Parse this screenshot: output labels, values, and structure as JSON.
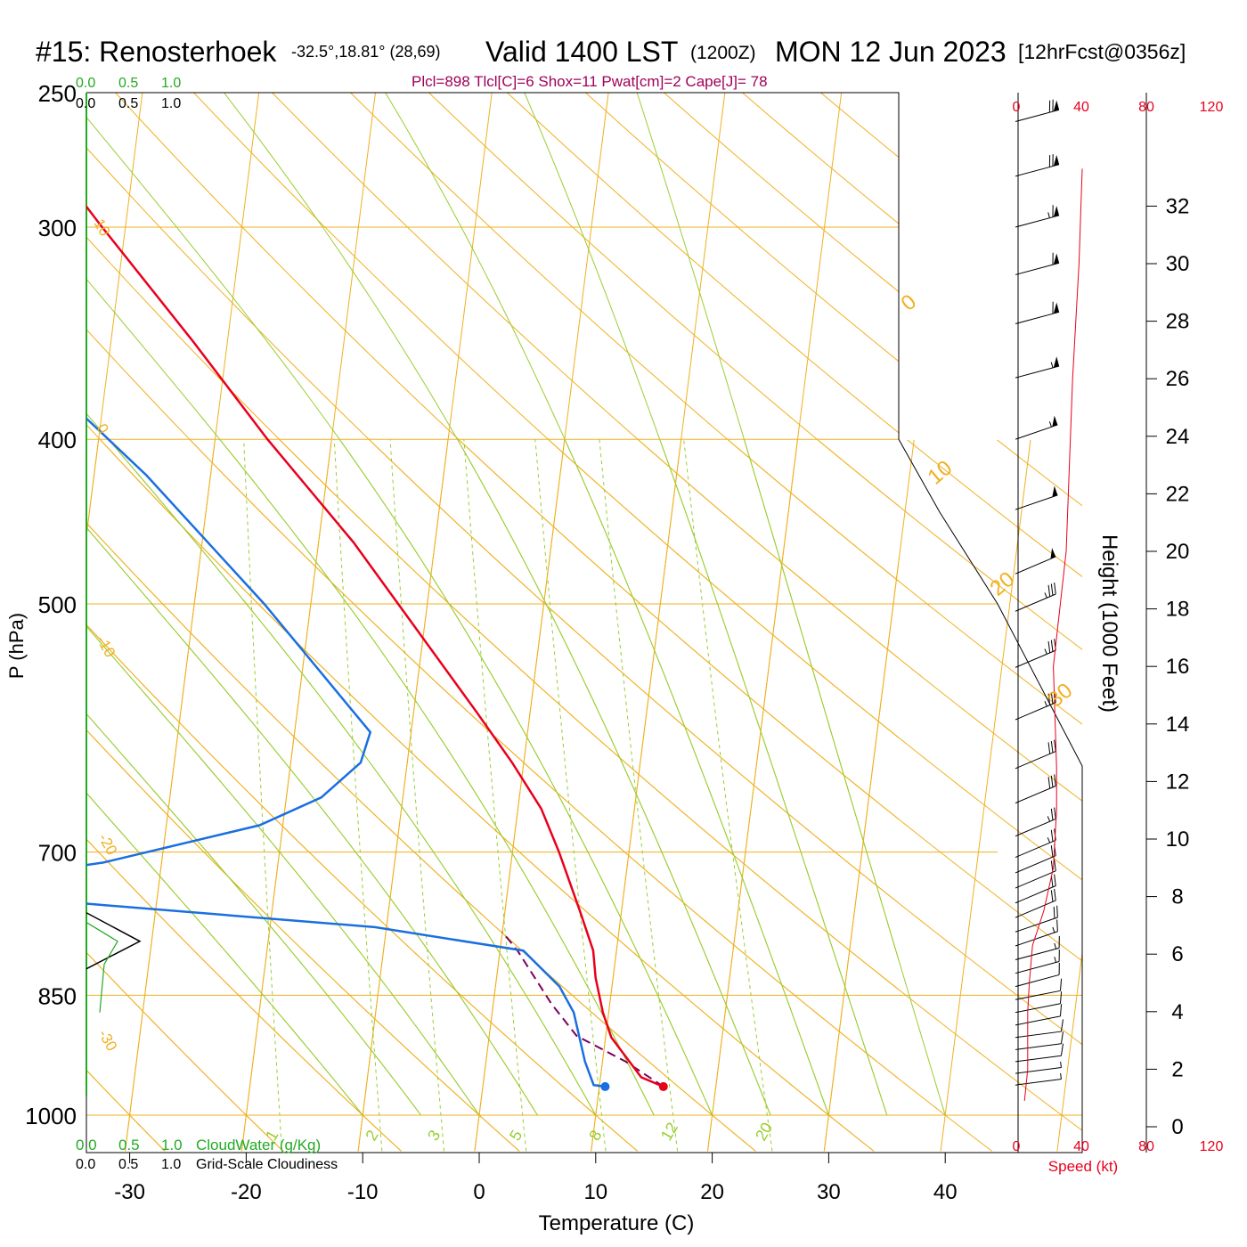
{
  "header": {
    "station": "#15: Renosterhoek",
    "coords": "-32.5°,18.81° (28,69)",
    "valid": "Valid 1400 LST",
    "zulu": "(1200Z)",
    "date": "MON 12 Jun 2023",
    "forecast": "[12hrFcst@0356z]",
    "stats": "Plcl=898 Tlcl[C]=6 Shox=11 Pwat[cm]=2 Cape[J]= 78"
  },
  "legend": {
    "cloudwater_scale": [
      "0.0",
      "0.5",
      "1.0"
    ],
    "cloudiness_scale": [
      "0.0",
      "0.5",
      "1.0"
    ],
    "cloudwater_label": "CloudWater (g/Kg)",
    "cloudiness_label": "Grid-Scale Cloudiness"
  },
  "colors": {
    "temperature": "#e8001c",
    "dewpoint": "#1a6fe0",
    "parcel": "#7a0060",
    "isotherm": "#f0b020",
    "moist_adiabat": "#9acd32",
    "mixing_ratio": "#9acd32",
    "cloudwater": "#22aa22",
    "speed": "#e8001c",
    "stats": "#a0005a"
  },
  "chart_data": {
    "type": "line",
    "subtype": "skew-T log-P sounding",
    "xlabel": "Temperature (C)",
    "ylabel": "P (hPa)",
    "y2label": "Height (1000 Feet)",
    "speed_label": "Speed (kt)",
    "xticks": [
      "-30",
      "-20",
      "-10",
      "0",
      "10",
      "20",
      "30",
      "40"
    ],
    "pressure_levels": [
      "250",
      "300",
      "400",
      "500",
      "700",
      "850",
      "1000"
    ],
    "height_ticks": [
      "0",
      "2",
      "4",
      "6",
      "8",
      "10",
      "12",
      "14",
      "16",
      "18",
      "20",
      "22",
      "24",
      "26",
      "28",
      "30",
      "32"
    ],
    "speed_ticks": [
      "0",
      "40",
      "80",
      "120"
    ],
    "isotherm_labels": [
      "10",
      "0",
      "-10",
      "-20",
      "-30"
    ],
    "isotherm_labels_upper": [
      "0",
      "10",
      "20",
      "30"
    ],
    "mixing_ratio_labels": [
      "1",
      "2",
      "3",
      "5",
      "8",
      "12",
      "20"
    ],
    "temperature_profile": [
      {
        "p": 962,
        "t": 15.5
      },
      {
        "p": 950,
        "t": 13.5
      },
      {
        "p": 900,
        "t": 10.5
      },
      {
        "p": 870,
        "t": 9.5
      },
      {
        "p": 830,
        "t": 8.5
      },
      {
        "p": 800,
        "t": 8.0
      },
      {
        "p": 760,
        "t": 6.5
      },
      {
        "p": 700,
        "t": 4.0
      },
      {
        "p": 660,
        "t": 2.0
      },
      {
        "p": 620,
        "t": -1.0
      },
      {
        "p": 580,
        "t": -4.5
      },
      {
        "p": 500,
        "t": -12.5
      },
      {
        "p": 460,
        "t": -17.0
      },
      {
        "p": 400,
        "t": -25.5
      },
      {
        "p": 350,
        "t": -33.0
      },
      {
        "p": 300,
        "t": -42.0
      },
      {
        "p": 265,
        "t": -49.0
      }
    ],
    "dewpoint_profile": [
      {
        "p": 962,
        "t": 10.5
      },
      {
        "p": 960,
        "t": 9.5
      },
      {
        "p": 930,
        "t": 8.5
      },
      {
        "p": 870,
        "t": 7.0
      },
      {
        "p": 840,
        "t": 5.5
      },
      {
        "p": 800,
        "t": 2.0
      },
      {
        "p": 775,
        "t": -11.0
      },
      {
        "p": 745,
        "t": -42.0
      },
      {
        "p": 730,
        "t": -47.0
      },
      {
        "p": 710,
        "t": -35.0
      },
      {
        "p": 675,
        "t": -22.0
      },
      {
        "p": 650,
        "t": -17.0
      },
      {
        "p": 620,
        "t": -14.0
      },
      {
        "p": 595,
        "t": -13.5
      },
      {
        "p": 500,
        "t": -24.0
      },
      {
        "p": 420,
        "t": -35.5
      },
      {
        "p": 380,
        "t": -43.0
      },
      {
        "p": 300,
        "t": -57.0
      },
      {
        "p": 265,
        "t": -62.5
      }
    ],
    "parcel_profile": [
      {
        "p": 962,
        "t": 15.5
      },
      {
        "p": 930,
        "t": 12.0
      },
      {
        "p": 898,
        "t": 7.5
      },
      {
        "p": 860,
        "t": 5.0
      },
      {
        "p": 800,
        "t": 1.5
      },
      {
        "p": 780,
        "t": 0.0
      }
    ],
    "surface": {
      "temp": 15.5,
      "dewpoint": 10.5,
      "pressure": 962
    },
    "cloudiness": [
      {
        "p": 760,
        "v": 0.0
      },
      {
        "p": 790,
        "v": 0.6
      },
      {
        "p": 820,
        "v": 0.0
      }
    ],
    "cloudwater": [
      {
        "p": 770,
        "v": 0.0
      },
      {
        "p": 790,
        "v": 0.35
      },
      {
        "p": 815,
        "v": 0.2
      },
      {
        "p": 870,
        "v": 0.15
      }
    ],
    "wind_speed_kt": [
      {
        "h": 0.9,
        "s": 4
      },
      {
        "h": 2.0,
        "s": 6
      },
      {
        "h": 4.0,
        "s": 6
      },
      {
        "h": 5.0,
        "s": 7
      },
      {
        "h": 6.3,
        "s": 9
      },
      {
        "h": 7.5,
        "s": 16
      },
      {
        "h": 9.0,
        "s": 22
      },
      {
        "h": 11.0,
        "s": 24
      },
      {
        "h": 12.5,
        "s": 24
      },
      {
        "h": 16.0,
        "s": 22
      },
      {
        "h": 20.0,
        "s": 30
      },
      {
        "h": 26.0,
        "s": 34
      },
      {
        "h": 30.0,
        "s": 38
      },
      {
        "h": 33.3,
        "s": 40
      }
    ],
    "wind_barbs": [
      {
        "p": 260,
        "speed": 70,
        "dir": 290
      },
      {
        "p": 280,
        "speed": 70,
        "dir": 290
      },
      {
        "p": 300,
        "speed": 65,
        "dir": 290
      },
      {
        "p": 320,
        "speed": 60,
        "dir": 290
      },
      {
        "p": 342,
        "speed": 60,
        "dir": 290
      },
      {
        "p": 368,
        "speed": 55,
        "dir": 290
      },
      {
        "p": 400,
        "speed": 55,
        "dir": 295
      },
      {
        "p": 440,
        "speed": 50,
        "dir": 295
      },
      {
        "p": 480,
        "speed": 50,
        "dir": 300
      },
      {
        "p": 505,
        "speed": 35,
        "dir": 300
      },
      {
        "p": 545,
        "speed": 35,
        "dir": 300
      },
      {
        "p": 585,
        "speed": 35,
        "dir": 300
      },
      {
        "p": 625,
        "speed": 30,
        "dir": 300
      },
      {
        "p": 655,
        "speed": 30,
        "dir": 300
      },
      {
        "p": 685,
        "speed": 25,
        "dir": 300
      },
      {
        "p": 705,
        "speed": 25,
        "dir": 300
      },
      {
        "p": 720,
        "speed": 20,
        "dir": 300
      },
      {
        "p": 735,
        "speed": 20,
        "dir": 300
      },
      {
        "p": 750,
        "speed": 20,
        "dir": 300
      },
      {
        "p": 765,
        "speed": 20,
        "dir": 300
      },
      {
        "p": 780,
        "speed": 20,
        "dir": 295
      },
      {
        "p": 795,
        "speed": 15,
        "dir": 295
      },
      {
        "p": 810,
        "speed": 15,
        "dir": 290
      },
      {
        "p": 825,
        "speed": 15,
        "dir": 290
      },
      {
        "p": 840,
        "speed": 10,
        "dir": 290
      },
      {
        "p": 855,
        "speed": 10,
        "dir": 285
      },
      {
        "p": 870,
        "speed": 10,
        "dir": 285
      },
      {
        "p": 885,
        "speed": 10,
        "dir": 285
      },
      {
        "p": 900,
        "speed": 10,
        "dir": 280
      },
      {
        "p": 915,
        "speed": 10,
        "dir": 280
      },
      {
        "p": 930,
        "speed": 10,
        "dir": 280
      },
      {
        "p": 945,
        "speed": 5,
        "dir": 280
      },
      {
        "p": 960,
        "speed": 5,
        "dir": 280
      }
    ]
  }
}
